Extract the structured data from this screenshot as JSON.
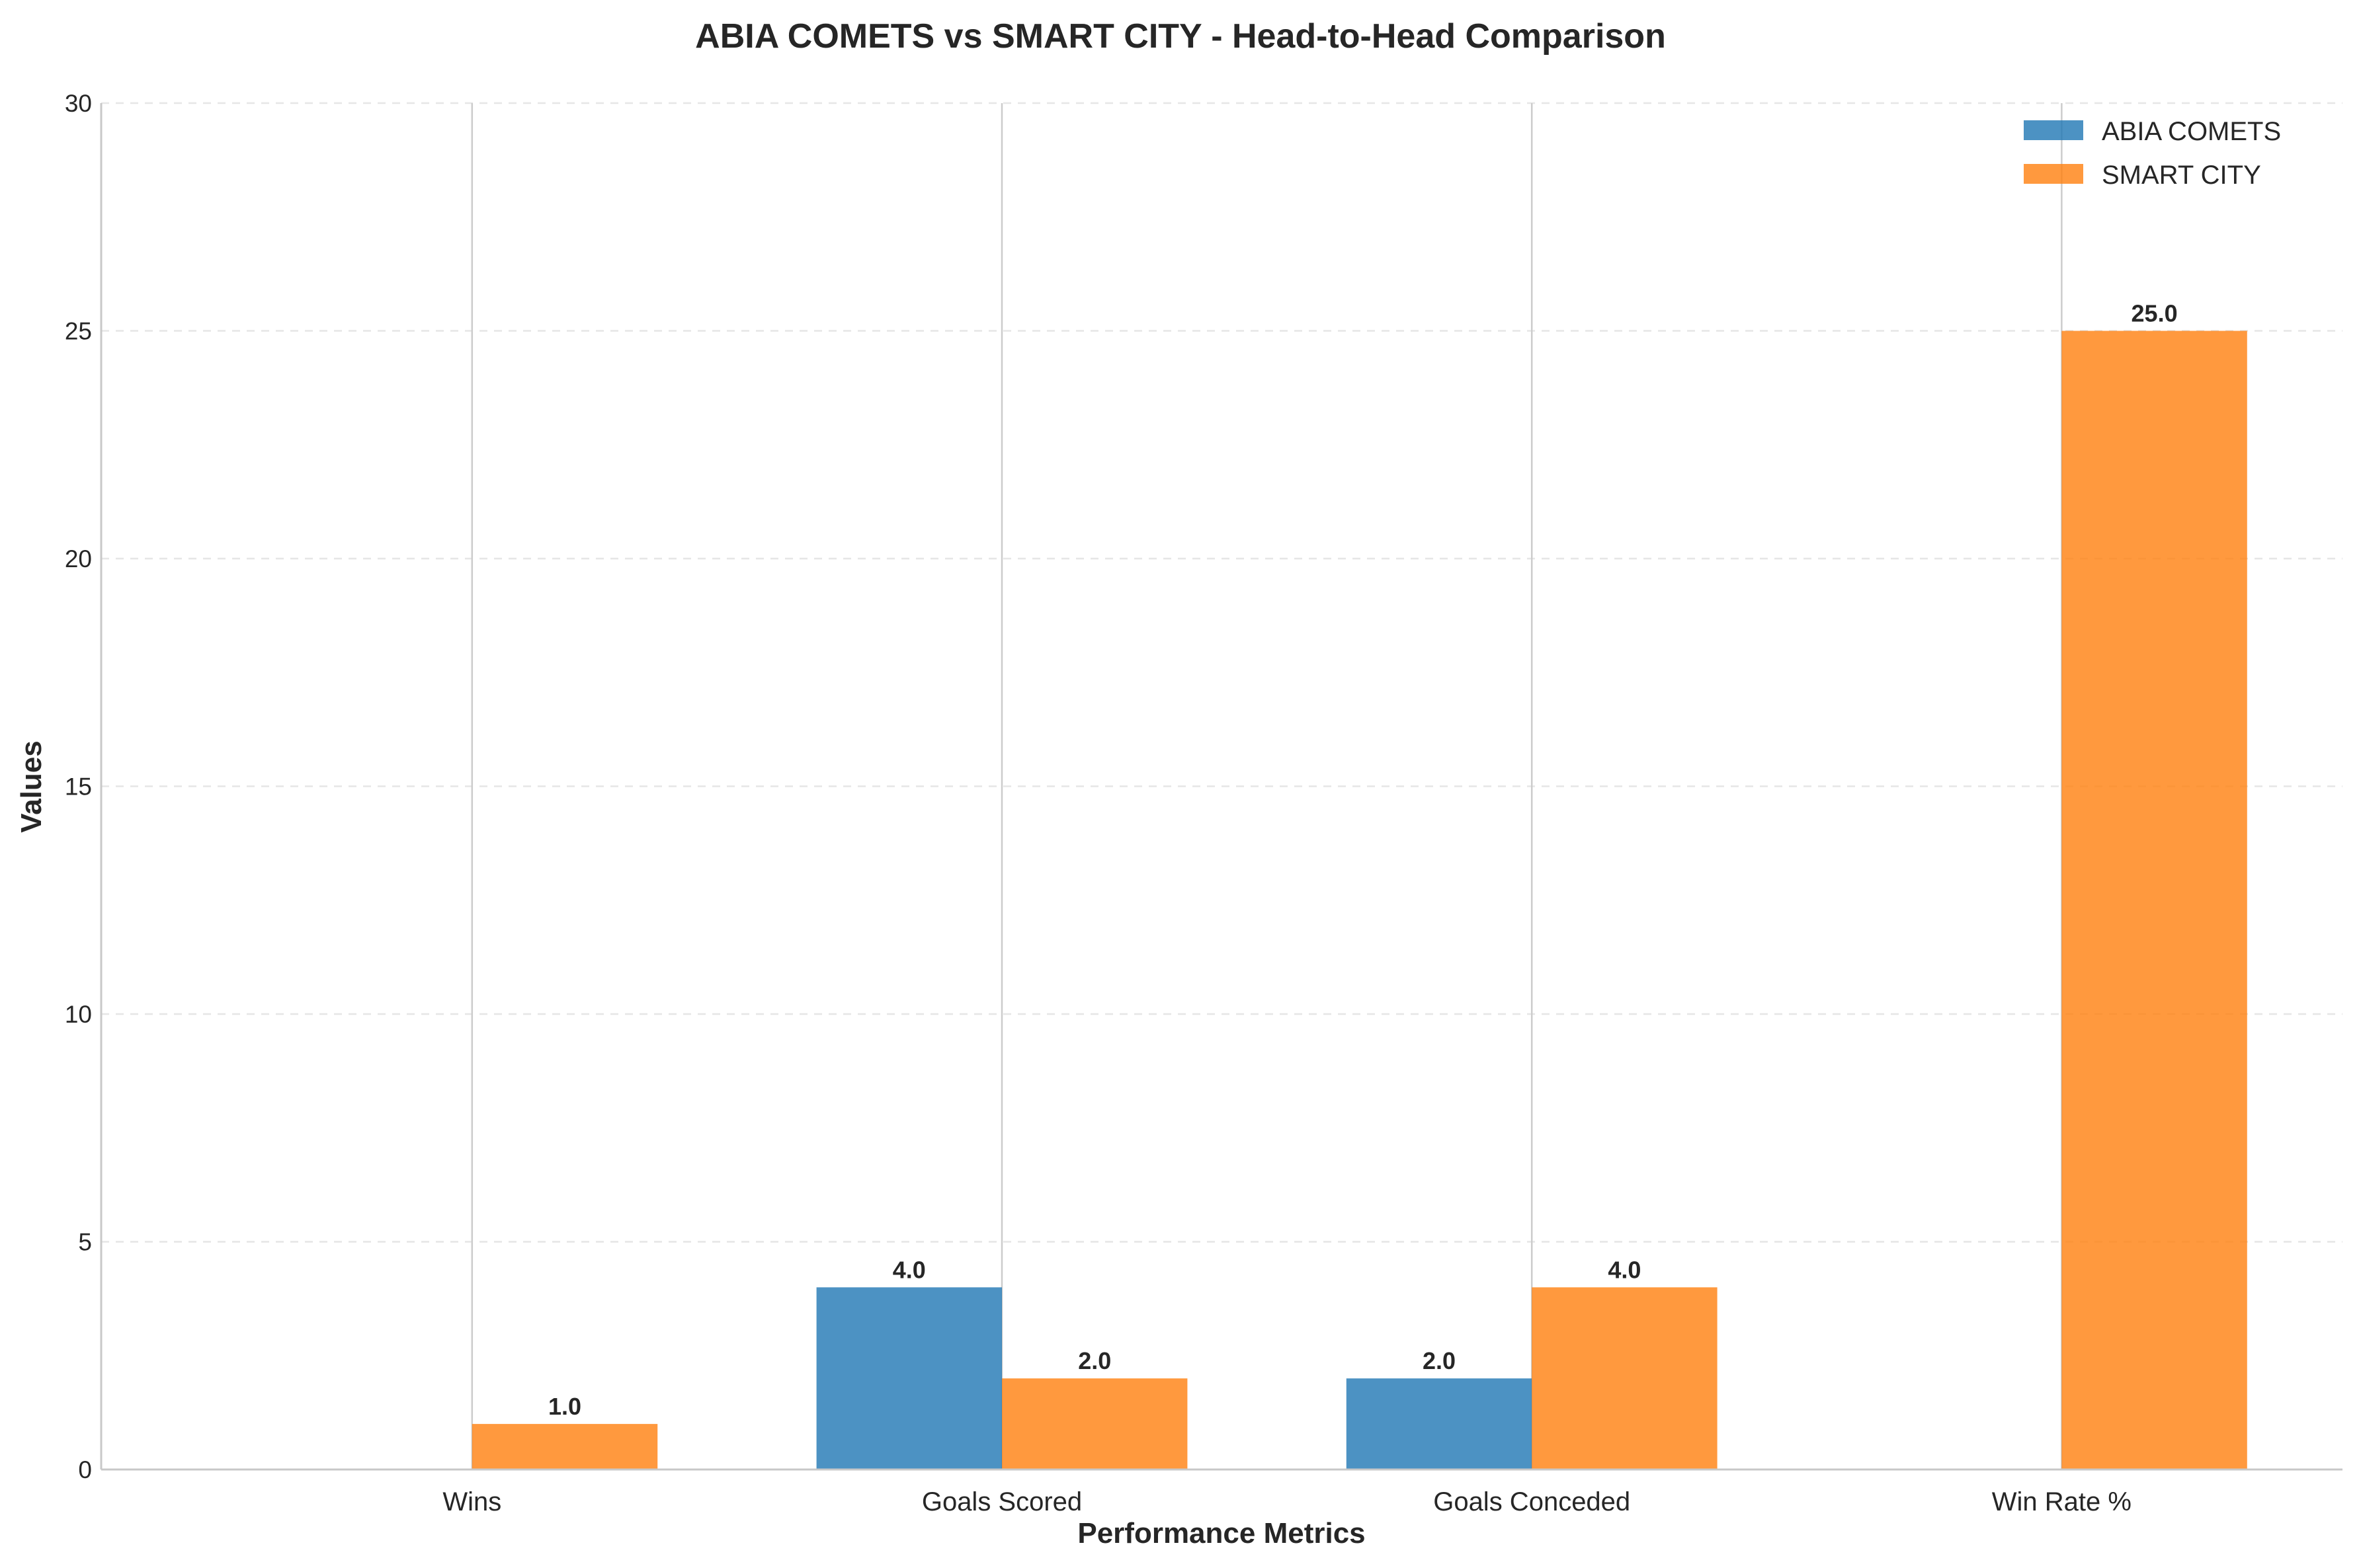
{
  "chart_data": {
    "type": "bar",
    "title": "ABIA COMETS vs SMART CITY - Head-to-Head Comparison",
    "xlabel": "Performance Metrics",
    "ylabel": "Values",
    "categories": [
      "Wins",
      "Goals Scored",
      "Goals Conceded",
      "Win Rate %"
    ],
    "series": [
      {
        "name": "ABIA COMETS",
        "color": "#1f77b4",
        "values": [
          0,
          4,
          2,
          0
        ],
        "labels": [
          "",
          "4.0",
          "2.0",
          ""
        ]
      },
      {
        "name": "SMART CITY",
        "color": "#ff7f0e",
        "values": [
          1,
          2,
          4,
          25
        ],
        "labels": [
          "1.0",
          "2.0",
          "4.0",
          "25.0"
        ]
      }
    ],
    "ylim": [
      0,
      30
    ],
    "yticks": [
      0,
      5,
      10,
      15,
      20,
      25,
      30
    ],
    "ytick_labels": [
      "0",
      "5",
      "10",
      "15",
      "20",
      "25",
      "30"
    ],
    "grid": "y-dashed, x-solid at category centers",
    "legend_position": "top-right"
  }
}
